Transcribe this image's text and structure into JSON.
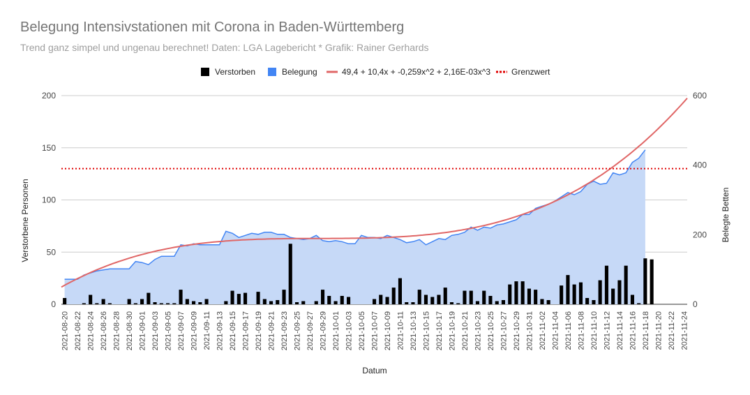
{
  "chart_data": {
    "type": "bar+area+line",
    "title": "Belegung Intensivstationen mit Corona in Baden-Württemberg",
    "subtitle": "Trend ganz simpel und ungenau berechnet! Daten: LGA Lagebericht * Grafik: Rainer Gerhards",
    "xlabel": "Datum",
    "ylabel_left": "Verstorbene Personen",
    "ylabel_right": "Belegte Betten",
    "ylim_left": [
      0,
      200
    ],
    "ylim_right": [
      0,
      600
    ],
    "yticks_left": [
      "0",
      "50",
      "100",
      "150",
      "200"
    ],
    "yticks_right": [
      "0",
      "200",
      "400",
      "600"
    ],
    "grid": true,
    "legend_position": "top",
    "legend": [
      "Verstorben",
      "Belegung",
      "49,4 + 10,4x + -0,259x^2 + 2,16E-03x^3",
      "Grenzwert"
    ],
    "colors": {
      "verstorben": "#000000",
      "belegung_line": "#4285f4",
      "belegung_fill": "#c6d9f7",
      "trend": "#e06666",
      "grenzwert": "#e00000"
    },
    "start_date": "2021-08-20",
    "end_date": "2021-11-25",
    "x_tick_labels": [
      "2021-08-20",
      "2021-08-22",
      "2021-08-24",
      "2021-08-26",
      "2021-08-28",
      "2021-08-30",
      "2021-09-01",
      "2021-09-03",
      "2021-09-05",
      "2021-09-07",
      "2021-09-09",
      "2021-09-11",
      "2021-09-13",
      "2021-09-15",
      "2021-09-17",
      "2021-09-19",
      "2021-09-21",
      "2021-09-23",
      "2021-09-25",
      "2021-09-27",
      "2021-09-29",
      "2021-10-01",
      "2021-10-03",
      "2021-10-05",
      "2021-10-07",
      "2021-10-09",
      "2021-10-11",
      "2021-10-13",
      "2021-10-15",
      "2021-10-17",
      "2021-10-19",
      "2021-10-21",
      "2021-10-23",
      "2021-10-25",
      "2021-10-27",
      "2021-10-29",
      "2021-10-31",
      "2021-11-02",
      "2021-11-04",
      "2021-11-06",
      "2021-11-08",
      "2021-11-10",
      "2021-11-12",
      "2021-11-14",
      "2021-11-16",
      "2021-11-18",
      "2021-11-20",
      "2021-11-22",
      "2021-11-24"
    ],
    "series": [
      {
        "name": "Verstorben",
        "axis": "left",
        "type": "bar",
        "values": [
          6,
          0,
          0,
          1,
          9,
          1,
          5,
          1,
          0,
          0,
          5,
          1,
          5,
          11,
          2,
          1,
          1,
          1,
          14,
          5,
          3,
          2,
          5,
          0,
          0,
          3,
          13,
          10,
          11,
          0,
          12,
          5,
          3,
          4,
          14,
          58,
          2,
          3,
          0,
          3,
          14,
          8,
          3,
          8,
          7,
          0,
          0,
          0,
          5,
          9,
          7,
          16,
          25,
          2,
          2,
          14,
          9,
          7,
          9,
          16,
          2,
          1,
          13,
          13,
          3,
          13,
          8,
          3,
          4,
          19,
          22,
          22,
          15,
          14,
          5,
          4,
          0,
          18,
          28,
          19,
          21,
          6,
          4,
          23,
          37,
          15,
          23,
          37,
          9,
          1,
          44,
          43
        ]
      },
      {
        "name": "Belegung",
        "axis": "right",
        "type": "area",
        "values": [
          72,
          72,
          72,
          84,
          90,
          96,
          99,
          102,
          102,
          102,
          102,
          123,
          120,
          114,
          129,
          138,
          138,
          138,
          171,
          168,
          174,
          171,
          171,
          171,
          171,
          210,
          204,
          192,
          198,
          204,
          201,
          207,
          207,
          201,
          201,
          192,
          189,
          186,
          189,
          198,
          183,
          180,
          183,
          180,
          174,
          174,
          198,
          192,
          192,
          189,
          198,
          192,
          186,
          177,
          180,
          186,
          171,
          180,
          189,
          186,
          198,
          201,
          207,
          222,
          213,
          222,
          219,
          228,
          231,
          237,
          243,
          258,
          258,
          276,
          282,
          288,
          297,
          309,
          321,
          315,
          324,
          345,
          354,
          345,
          348,
          378,
          372,
          378,
          408,
          420,
          444
        ]
      },
      {
        "name": "49,4 + 10,4x + -0,259x^2 + 2,16E-03x^3",
        "axis": "right",
        "type": "line",
        "coefficients": [
          49.4,
          10.4,
          -0.259,
          0.00216
        ]
      },
      {
        "name": "Grenzwert",
        "axis": "right",
        "type": "line",
        "style": "dotted",
        "value": 390
      }
    ]
  }
}
